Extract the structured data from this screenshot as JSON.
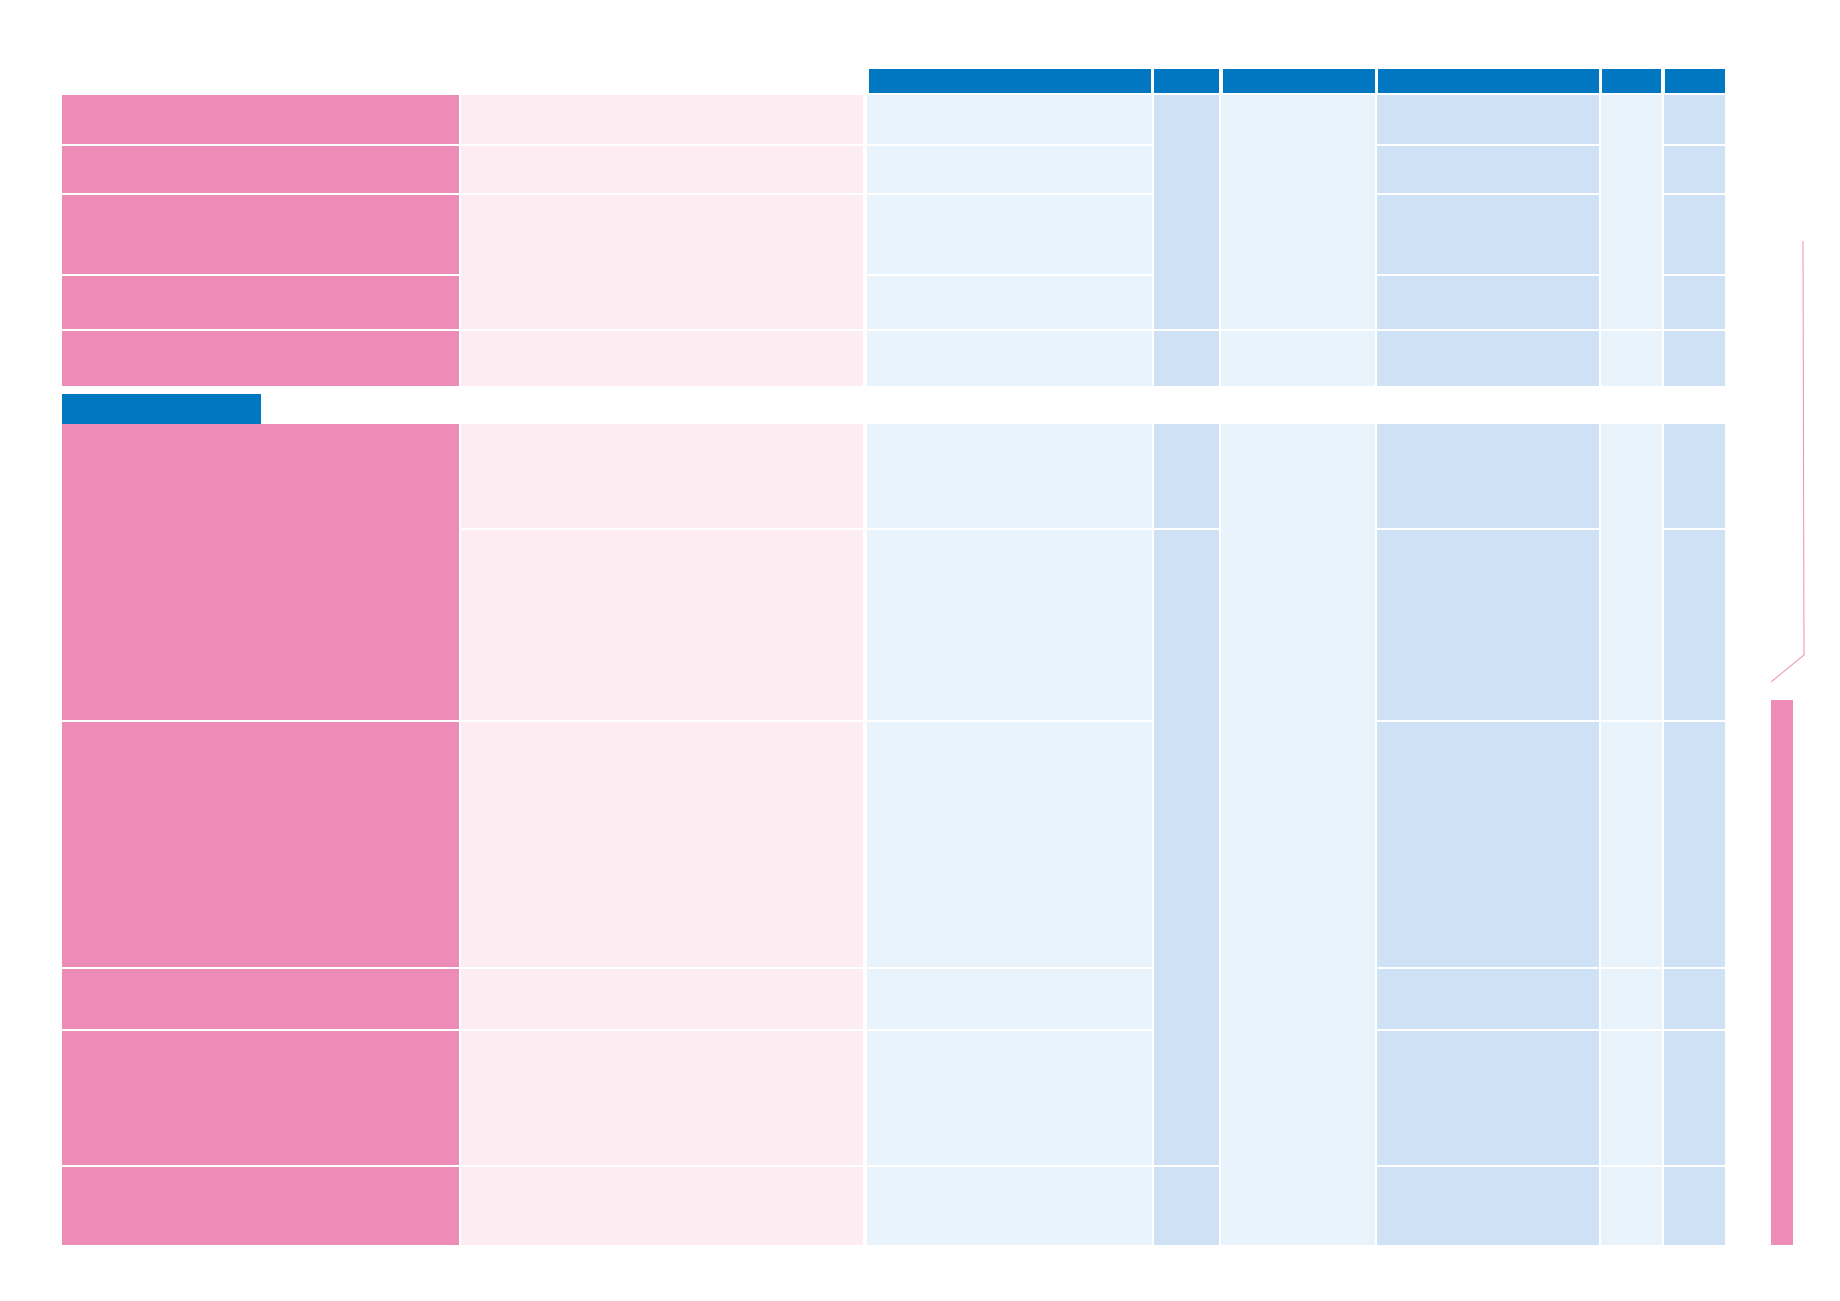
{
  "colors": {
    "page_background": "#ffffff",
    "header_blue": "#0077c0",
    "label_pink": "#ed8db7",
    "light_pink": "#fdedf2",
    "light_blue": "#e9f3fc",
    "mid_blue": "#cfe2f5",
    "connector_pink": "#ed8db7"
  }
}
